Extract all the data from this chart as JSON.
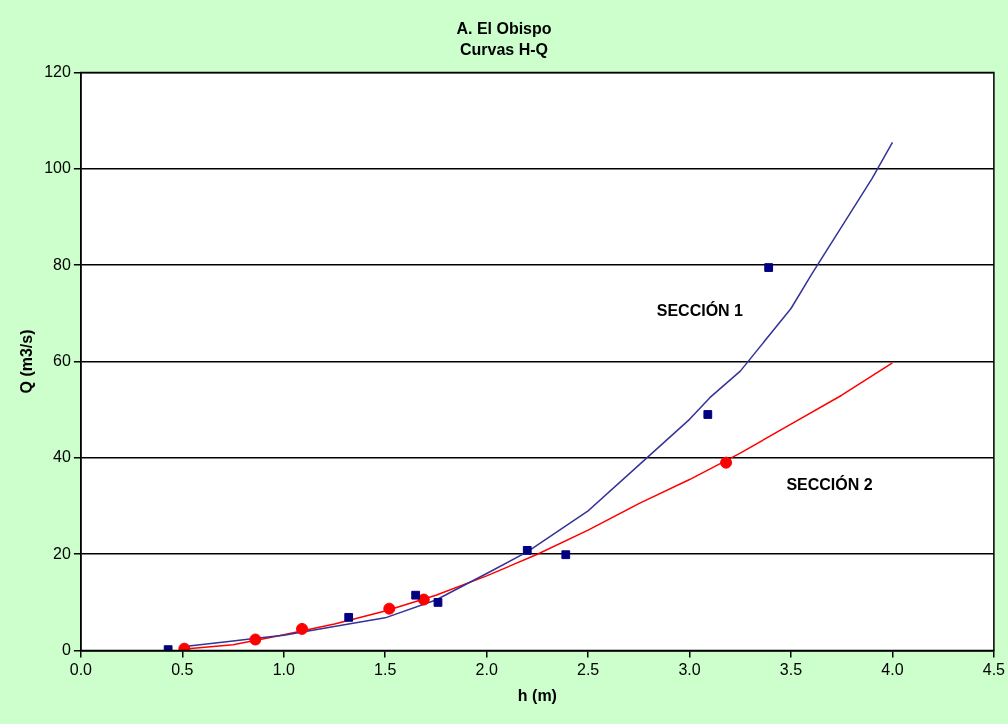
{
  "chart_data": {
    "type": "scatter",
    "title": "A. El Obispo",
    "subtitle": "Curvas H-Q",
    "xlabel": "h (m)",
    "ylabel": "Q (m3/s)",
    "xlim": [
      0,
      4.5
    ],
    "xticks": [
      {
        "value": 0,
        "label": "0.0"
      },
      {
        "value": 0.5,
        "label": "0.5"
      },
      {
        "value": 1,
        "label": "1.0"
      },
      {
        "value": 1.5,
        "label": "1.5"
      },
      {
        "value": 2,
        "label": "2.0"
      },
      {
        "value": 2.5,
        "label": "2.5"
      },
      {
        "value": 3,
        "label": "3.0"
      },
      {
        "value": 3.5,
        "label": "3.5"
      },
      {
        "value": 4,
        "label": "4.0"
      },
      {
        "value": 4.5,
        "label": "4.5"
      }
    ],
    "ylim": [
      0,
      120
    ],
    "yticks": [
      0,
      20,
      40,
      60,
      80,
      100,
      120
    ],
    "grid": "y",
    "legend": false,
    "series": [
      {
        "type": "line",
        "marker": "none",
        "line_style": "solid",
        "color": "#333399",
        "x": [
          0.5,
          0.75,
          1.0,
          1.32,
          1.5,
          1.75,
          2.0,
          2.2,
          2.5,
          2.75,
          3.0,
          3.1,
          3.25,
          3.5,
          3.6,
          3.75,
          3.9,
          4.0
        ],
        "values": [
          0.8,
          2.0,
          3.2,
          5.5,
          6.8,
          10.5,
          16,
          20.5,
          29,
          38.5,
          48,
          52.5,
          58,
          71,
          78,
          88,
          98,
          105.5
        ]
      },
      {
        "type": "line",
        "marker": "none",
        "line_style": "solid",
        "color": "#ff0000",
        "x": [
          0.5,
          0.75,
          1.0,
          1.25,
          1.5,
          1.75,
          2.0,
          2.25,
          2.5,
          2.75,
          3.0,
          3.25,
          3.5,
          3.75,
          4.0
        ],
        "values": [
          0.3,
          1.2,
          3.3,
          5.5,
          8.2,
          11.5,
          15.5,
          20,
          25,
          30.5,
          35.5,
          41,
          47,
          53,
          59.7
        ]
      },
      {
        "marker": "square",
        "color": "#000080",
        "x": [
          0.43,
          1.32,
          1.65,
          1.76,
          2.2,
          2.39,
          3.09,
          3.39
        ],
        "values": [
          0.2,
          6.9,
          11.5,
          10,
          20.8,
          19.9,
          49,
          79.5
        ]
      },
      {
        "marker": "circle",
        "color": "#ff0000",
        "x": [
          0.51,
          0.86,
          1.09,
          1.52,
          1.69,
          3.18
        ],
        "values": [
          0.4,
          2.3,
          4.5,
          8.7,
          10.6,
          39
        ]
      }
    ],
    "annotations": [
      "SECCIÓN 1",
      "SECCIÓN 2"
    ]
  }
}
